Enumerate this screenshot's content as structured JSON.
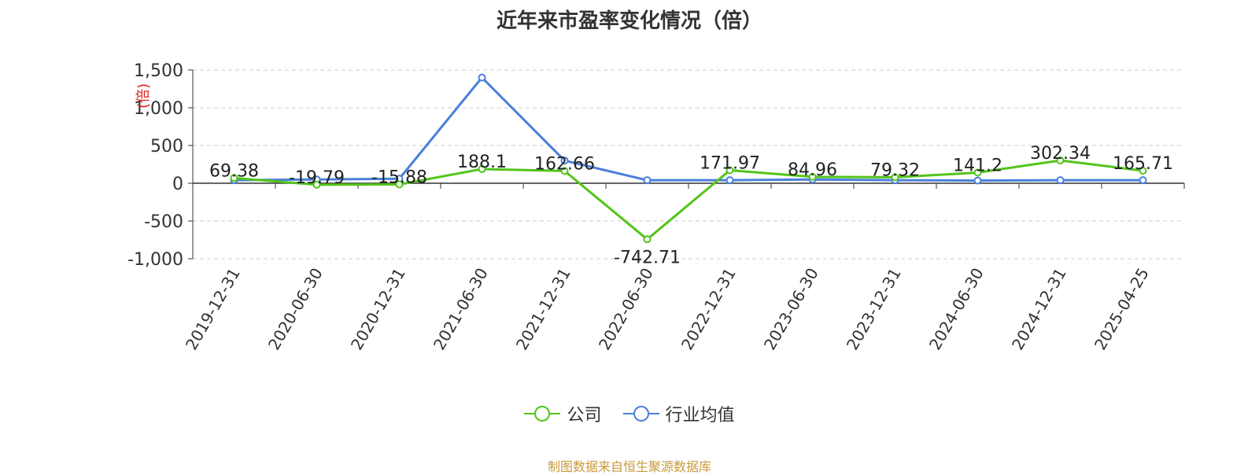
{
  "chart_data": {
    "type": "line",
    "title": "近年来市盈率变化情况（倍）",
    "ylabel": "(倍)",
    "ylim": [
      -1000,
      1500
    ],
    "yticks": [
      -1000,
      -500,
      0,
      500,
      1000,
      1500
    ],
    "ytick_labels": [
      "-1,000",
      "-500",
      "0",
      "500",
      "1,000",
      "1,500"
    ],
    "grid": true,
    "legend_position": "bottom",
    "categories": [
      "2019-12-31",
      "2020-06-30",
      "2020-12-31",
      "2021-06-30",
      "2021-12-31",
      "2022-06-30",
      "2022-12-31",
      "2023-06-30",
      "2023-12-31",
      "2024-06-30",
      "2024-12-31",
      "2025-04-25"
    ],
    "series": [
      {
        "name": "公司",
        "color": "#52c41a",
        "values": [
          69.38,
          -19.79,
          -15.88,
          188.1,
          162.66,
          -742.71,
          171.97,
          84.96,
          79.32,
          141.2,
          302.34,
          165.71
        ],
        "labels": [
          "69.38",
          "-19.79",
          "-15.88",
          "188.1",
          "162.66",
          "-742.71",
          "171.97",
          "84.96",
          "79.32",
          "141.2",
          "302.34",
          "165.71"
        ]
      },
      {
        "name": "行业均值",
        "color": "#4a7fdc",
        "values": [
          40,
          50,
          60,
          1400,
          300,
          40,
          40,
          50,
          40,
          35,
          40,
          40
        ]
      }
    ]
  },
  "source_note": "制图数据来自恒生聚源数据库"
}
